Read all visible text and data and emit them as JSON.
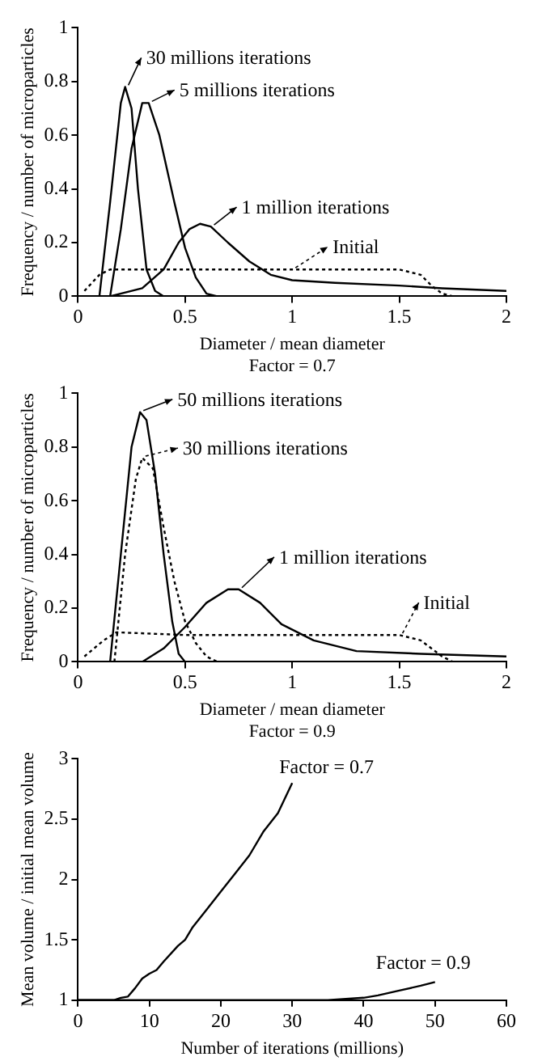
{
  "chart_data": [
    {
      "type": "line",
      "xlabel": "Diameter / mean diameter",
      "ylabel": "Frequency / number of microparticles",
      "annotations": [
        "Factor = 0.7"
      ],
      "xlim": [
        0,
        2
      ],
      "xticks": [
        0,
        0.5,
        1,
        1.5,
        2
      ],
      "ylim": [
        0,
        1
      ],
      "yticks": [
        0,
        0.2,
        0.4,
        0.6,
        0.8,
        1
      ],
      "grid": false,
      "legend": "top left",
      "marker": "none",
      "series": [
        {
          "name": "30 millions iterations",
          "color": "#000000",
          "line_style": "solid",
          "x": [
            0.1,
            0.15,
            0.2,
            0.22,
            0.25,
            0.28,
            0.32,
            0.36,
            0.4,
            0.45
          ],
          "values": [
            0,
            0.35,
            0.72,
            0.78,
            0.7,
            0.4,
            0.1,
            0.02,
            0,
            0
          ]
        },
        {
          "name": "5 millions iterations",
          "color": "#000000",
          "line_style": "solid",
          "x": [
            0.15,
            0.2,
            0.25,
            0.3,
            0.33,
            0.38,
            0.45,
            0.5,
            0.55,
            0.6,
            0.65
          ],
          "values": [
            0,
            0.25,
            0.55,
            0.72,
            0.72,
            0.6,
            0.35,
            0.18,
            0.07,
            0.01,
            0
          ]
        },
        {
          "name": "1 million iterations",
          "color": "#000000",
          "line_style": "solid",
          "x": [
            0.15,
            0.3,
            0.4,
            0.47,
            0.52,
            0.57,
            0.62,
            0.7,
            0.8,
            0.9,
            1.0,
            1.2,
            1.5,
            1.7,
            2.0
          ],
          "values": [
            0,
            0.03,
            0.1,
            0.2,
            0.25,
            0.27,
            0.26,
            0.2,
            0.13,
            0.08,
            0.06,
            0.05,
            0.04,
            0.03,
            0.02
          ]
        },
        {
          "name": "Initial",
          "color": "#000000",
          "line_style": "dotted",
          "x": [
            0.03,
            0.1,
            0.15,
            0.5,
            1,
            1.5,
            1.6,
            1.65,
            1.7,
            1.75
          ],
          "values": [
            0.02,
            0.08,
            0.1,
            0.1,
            0.1,
            0.1,
            0.08,
            0.04,
            0.01,
            0
          ]
        }
      ]
    },
    {
      "type": "line",
      "xlabel": "Diameter / mean diameter",
      "ylabel": "Frequency / number of microparticles",
      "annotations": [
        "Factor = 0.9"
      ],
      "xlim": [
        0,
        2
      ],
      "xticks": [
        0,
        0.5,
        1,
        1.5,
        2
      ],
      "ylim": [
        0,
        1
      ],
      "yticks": [
        0,
        0.2,
        0.4,
        0.6,
        0.8,
        1
      ],
      "grid": false,
      "legend": "top right",
      "marker": "none",
      "series": [
        {
          "name": "50 millions iterations",
          "color": "#000000",
          "line_style": "solid",
          "x": [
            0.15,
            0.2,
            0.25,
            0.29,
            0.32,
            0.36,
            0.4,
            0.44,
            0.47,
            0.5
          ],
          "values": [
            0,
            0.4,
            0.8,
            0.93,
            0.9,
            0.7,
            0.4,
            0.15,
            0.03,
            0
          ]
        },
        {
          "name": "30 millions iterations",
          "color": "#000000",
          "line_style": "dotted",
          "x": [
            0.17,
            0.22,
            0.27,
            0.3,
            0.35,
            0.4,
            0.45,
            0.5,
            0.55,
            0.6,
            0.65
          ],
          "values": [
            0,
            0.4,
            0.68,
            0.76,
            0.72,
            0.5,
            0.3,
            0.15,
            0.07,
            0.02,
            0
          ]
        },
        {
          "name": "1 million iterations",
          "color": "#000000",
          "line_style": "solid",
          "x": [
            0.3,
            0.4,
            0.5,
            0.6,
            0.7,
            0.75,
            0.85,
            0.95,
            1.1,
            1.3,
            1.6,
            2
          ],
          "values": [
            0,
            0.05,
            0.13,
            0.22,
            0.27,
            0.27,
            0.22,
            0.14,
            0.08,
            0.04,
            0.03,
            0.02
          ]
        },
        {
          "name": "Initial",
          "color": "#000000",
          "line_style": "dotted",
          "x": [
            0.03,
            0.12,
            0.18,
            0.5,
            1,
            1.5,
            1.6,
            1.7,
            1.75
          ],
          "values": [
            0.02,
            0.08,
            0.11,
            0.1,
            0.1,
            0.1,
            0.08,
            0.02,
            0
          ]
        }
      ]
    },
    {
      "type": "line",
      "xlabel": "Number of iterations (millions)",
      "ylabel": "Mean volume / initial mean volume",
      "xlim": [
        0,
        60
      ],
      "xticks": [
        0,
        10,
        20,
        30,
        40,
        50,
        60
      ],
      "ylim": [
        1,
        3
      ],
      "yticks": [
        1,
        1.5,
        2,
        2.5,
        3
      ],
      "grid": false,
      "marker": "none",
      "series": [
        {
          "name": "Factor = 0.7",
          "color": "#000000",
          "line_style": "solid",
          "x": [
            0,
            5,
            6,
            7,
            8,
            9,
            10,
            11,
            12,
            14,
            15,
            16,
            18,
            20,
            22,
            24,
            26,
            28,
            30
          ],
          "values": [
            1,
            1,
            1.02,
            1.03,
            1.1,
            1.18,
            1.22,
            1.25,
            1.32,
            1.45,
            1.5,
            1.6,
            1.75,
            1.9,
            2.05,
            2.2,
            2.4,
            2.55,
            2.8
          ]
        },
        {
          "name": "Factor = 0.9",
          "color": "#000000",
          "line_style": "solid",
          "x": [
            0,
            35,
            40,
            42,
            45,
            48,
            50
          ],
          "values": [
            1,
            1,
            1.02,
            1.04,
            1.08,
            1.12,
            1.15
          ]
        }
      ]
    }
  ]
}
